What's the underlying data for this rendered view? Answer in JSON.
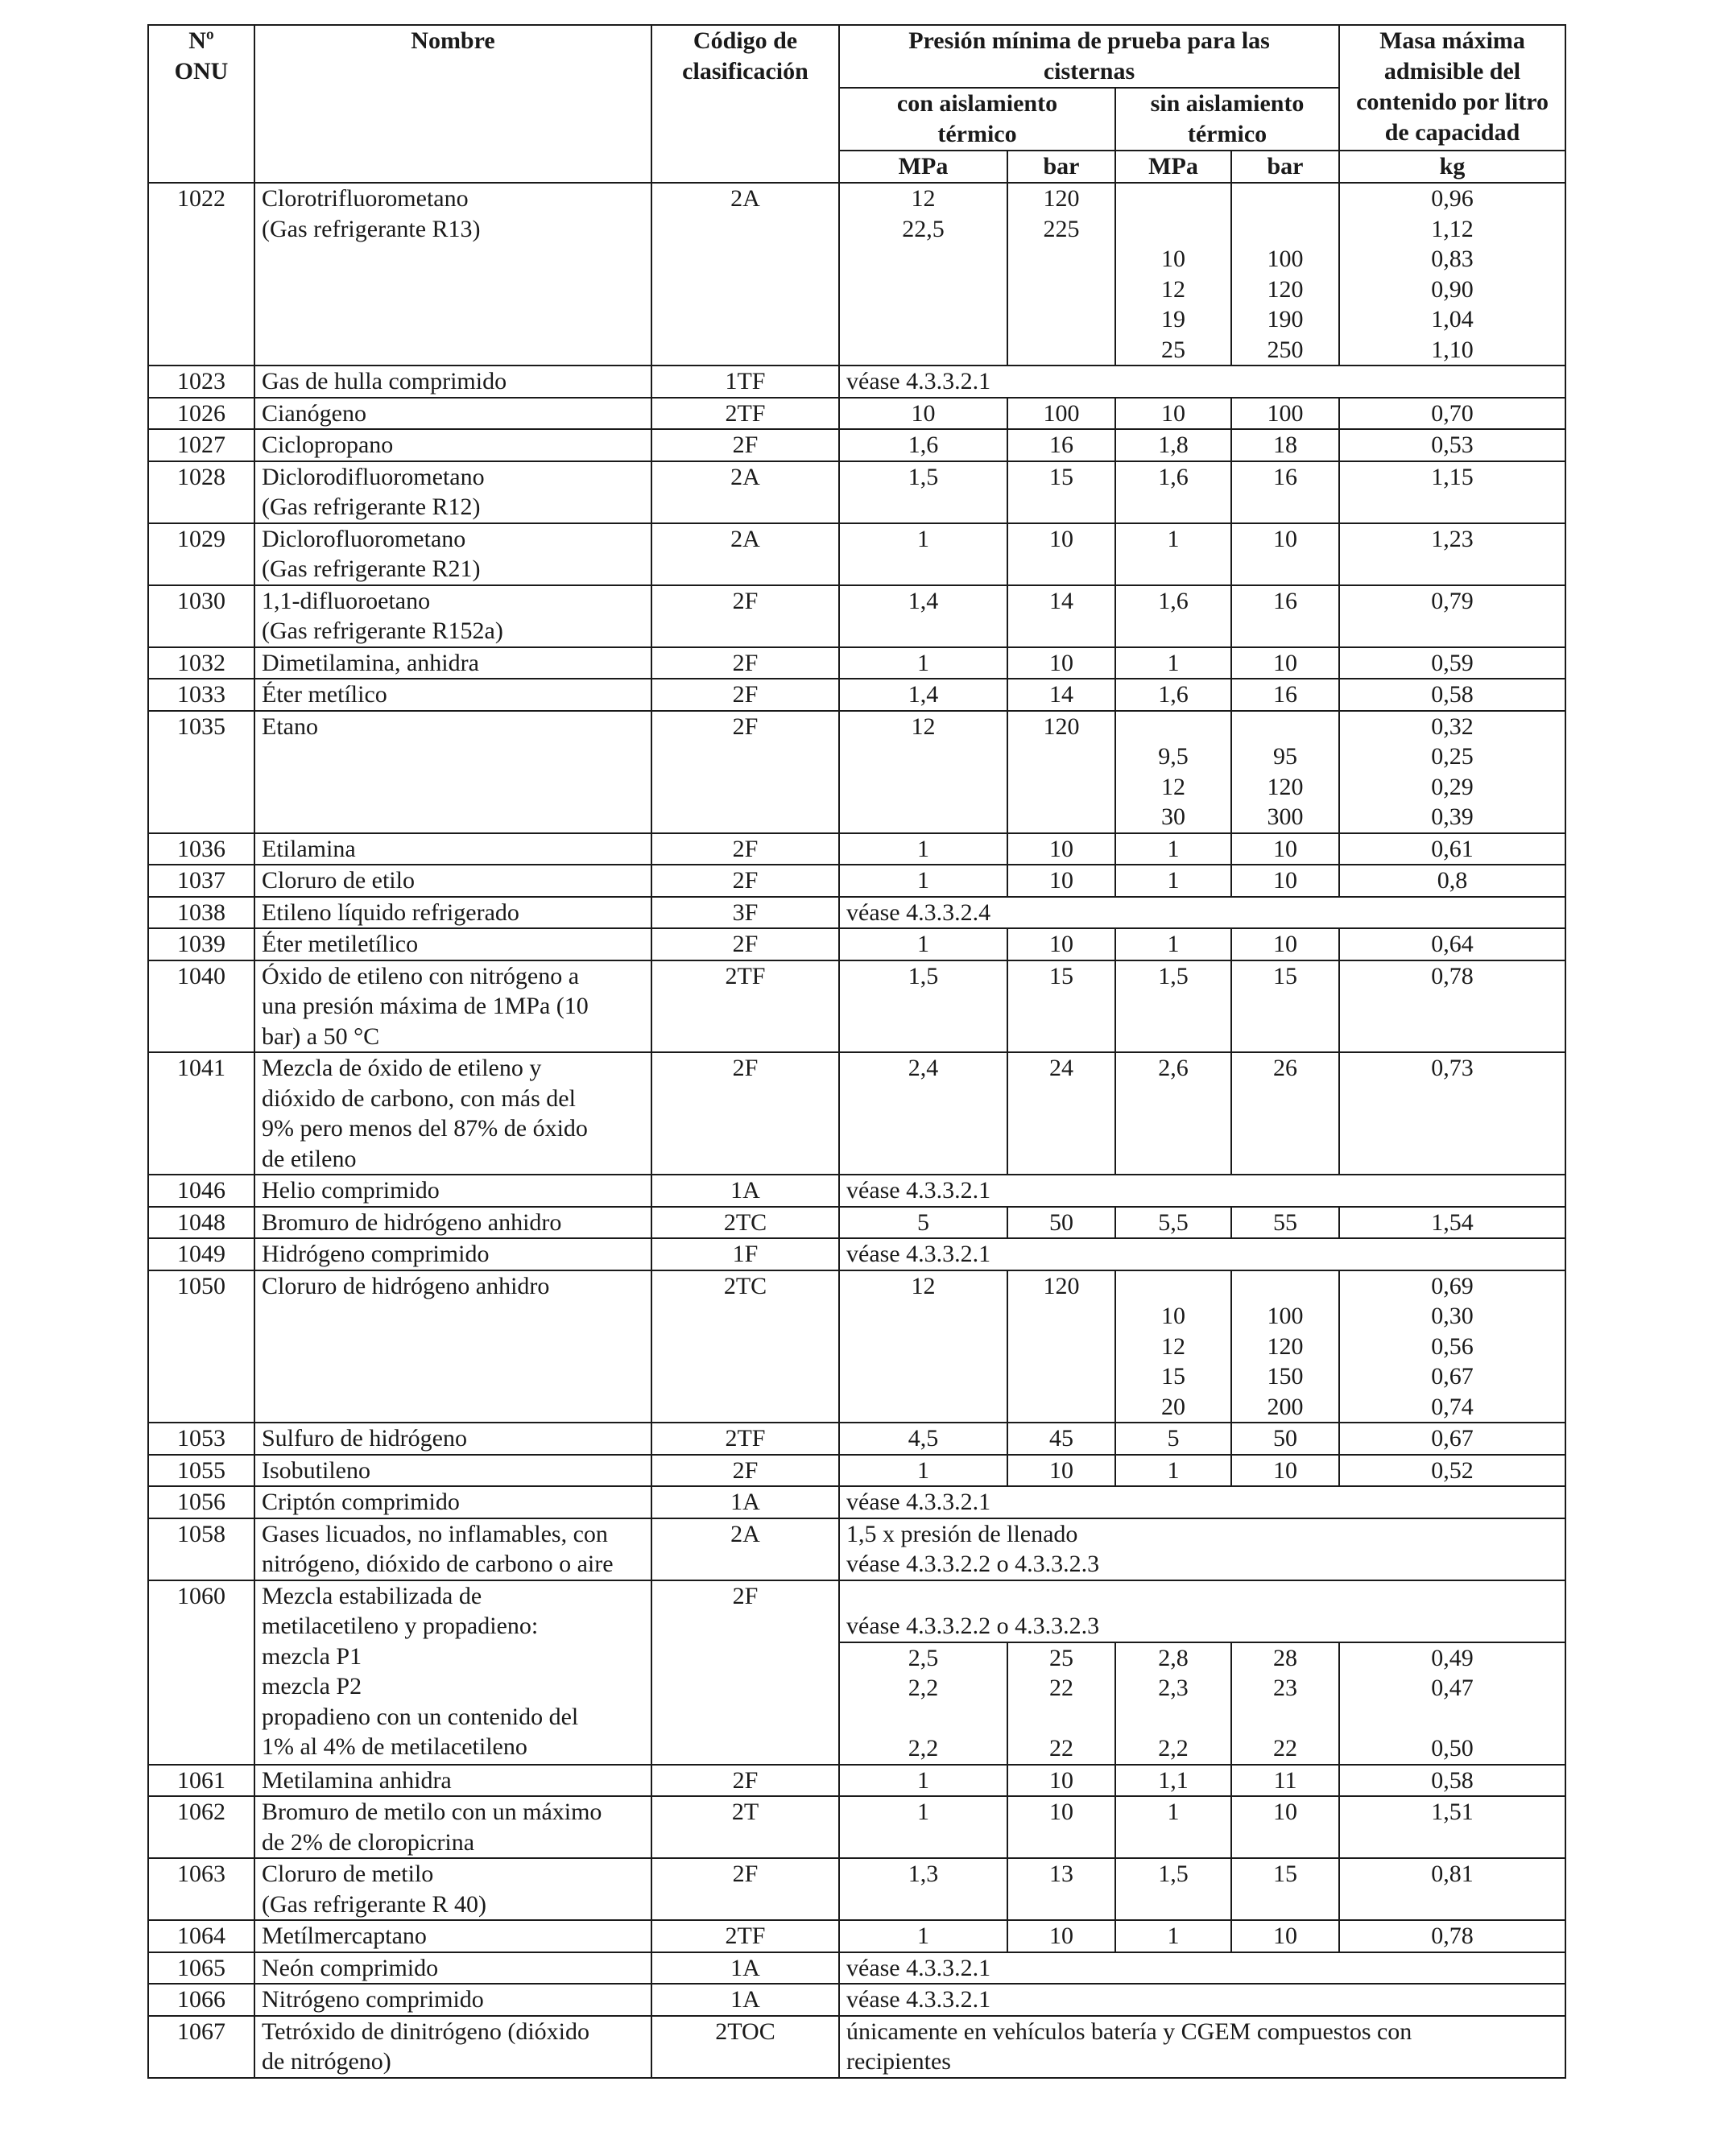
{
  "header": {
    "onu": [
      "Nº",
      "ONU"
    ],
    "nombre": "Nombre",
    "codigo": [
      "Código de",
      "clasificación"
    ],
    "presion": [
      "Presión mínima de prueba para las",
      "cisternas"
    ],
    "con_aisl": [
      "con aislamiento",
      "térmico"
    ],
    "sin_aisl": [
      "sin aislamiento",
      "térmico"
    ],
    "masa": [
      "Masa máxima",
      "admisible del",
      "contenido por litro",
      "de capacidad"
    ],
    "units": [
      "MPa",
      "bar",
      "MPa",
      "bar",
      "kg"
    ]
  },
  "rows": [
    {
      "onu": "1022",
      "nombre": [
        "Clorotrifluorometano",
        "(Gas refrigerante R13)"
      ],
      "codigo": "2A",
      "cmpa": [
        "12",
        "22,5",
        "",
        "",
        "",
        ""
      ],
      "cbar": [
        "120",
        "225",
        "",
        "",
        "",
        ""
      ],
      "smpa": [
        "",
        "",
        "10",
        "12",
        "19",
        "25"
      ],
      "sbar": [
        "",
        "",
        "100",
        "120",
        "190",
        "250"
      ],
      "kg": [
        "0,96",
        "1,12",
        "0,83",
        "0,90",
        "1,04",
        "1,10"
      ]
    },
    {
      "onu": "1023",
      "nombre": [
        "Gas de hulla comprimido"
      ],
      "codigo": "1TF",
      "span": [
        "véase 4.3.3.2.1"
      ]
    },
    {
      "onu": "1026",
      "nombre": [
        "Cianógeno"
      ],
      "codigo": "2TF",
      "cmpa": [
        "10"
      ],
      "cbar": [
        "100"
      ],
      "smpa": [
        "10"
      ],
      "sbar": [
        "100"
      ],
      "kg": [
        "0,70"
      ]
    },
    {
      "onu": "1027",
      "nombre": [
        "Ciclopropano"
      ],
      "codigo": "2F",
      "cmpa": [
        "1,6"
      ],
      "cbar": [
        "16"
      ],
      "smpa": [
        "1,8"
      ],
      "sbar": [
        "18"
      ],
      "kg": [
        "0,53"
      ]
    },
    {
      "onu": "1028",
      "nombre": [
        "Diclorodifluorometano",
        "(Gas refrigerante R12)"
      ],
      "codigo": "2A",
      "cmpa": [
        "1,5"
      ],
      "cbar": [
        "15"
      ],
      "smpa": [
        "1,6"
      ],
      "sbar": [
        "16"
      ],
      "kg": [
        "1,15"
      ]
    },
    {
      "onu": "1029",
      "nombre": [
        "Diclorofluorometano",
        "(Gas refrigerante R21)"
      ],
      "codigo": "2A",
      "cmpa": [
        "1"
      ],
      "cbar": [
        "10"
      ],
      "smpa": [
        "1"
      ],
      "sbar": [
        "10"
      ],
      "kg": [
        "1,23"
      ]
    },
    {
      "onu": "1030",
      "nombre": [
        "1,1-difluoroetano",
        "(Gas refrigerante R152a)"
      ],
      "codigo": "2F",
      "cmpa": [
        "1,4"
      ],
      "cbar": [
        "14"
      ],
      "smpa": [
        "1,6"
      ],
      "sbar": [
        "16"
      ],
      "kg": [
        "0,79"
      ]
    },
    {
      "onu": "1032",
      "nombre": [
        "Dimetilamina, anhidra"
      ],
      "codigo": "2F",
      "cmpa": [
        "1"
      ],
      "cbar": [
        "10"
      ],
      "smpa": [
        "1"
      ],
      "sbar": [
        "10"
      ],
      "kg": [
        "0,59"
      ]
    },
    {
      "onu": "1033",
      "nombre": [
        "Éter metílico"
      ],
      "codigo": "2F",
      "cmpa": [
        "1,4"
      ],
      "cbar": [
        "14"
      ],
      "smpa": [
        "1,6"
      ],
      "sbar": [
        "16"
      ],
      "kg": [
        "0,58"
      ]
    },
    {
      "onu": "1035",
      "nombre": [
        "Etano"
      ],
      "codigo": "2F",
      "cmpa": [
        "12",
        "",
        "",
        ""
      ],
      "cbar": [
        "120",
        "",
        "",
        ""
      ],
      "smpa": [
        "",
        "9,5",
        "12",
        "30"
      ],
      "sbar": [
        "",
        "95",
        "120",
        "300"
      ],
      "kg": [
        "0,32",
        "0,25",
        "0,29",
        "0,39"
      ]
    },
    {
      "onu": "1036",
      "nombre": [
        "Etilamina"
      ],
      "codigo": "2F",
      "cmpa": [
        "1"
      ],
      "cbar": [
        "10"
      ],
      "smpa": [
        "1"
      ],
      "sbar": [
        "10"
      ],
      "kg": [
        "0,61"
      ]
    },
    {
      "onu": "1037",
      "nombre": [
        "Cloruro de etilo"
      ],
      "codigo": "2F",
      "cmpa": [
        "1"
      ],
      "cbar": [
        "10"
      ],
      "smpa": [
        "1"
      ],
      "sbar": [
        "10"
      ],
      "kg": [
        "0,8"
      ]
    },
    {
      "onu": "1038",
      "nombre": [
        "Etileno líquido refrigerado"
      ],
      "codigo": "3F",
      "span": [
        "véase 4.3.3.2.4"
      ]
    },
    {
      "onu": "1039",
      "nombre": [
        "Éter metiletílico"
      ],
      "codigo": "2F",
      "cmpa": [
        "1"
      ],
      "cbar": [
        "10"
      ],
      "smpa": [
        "1"
      ],
      "sbar": [
        "10"
      ],
      "kg": [
        "0,64"
      ]
    },
    {
      "onu": "1040",
      "nombre": [
        "Óxido de etileno con nitrógeno a",
        "una presión máxima de 1MPa (10",
        "bar) a 50 °C"
      ],
      "codigo": "2TF",
      "cmpa": [
        "1,5"
      ],
      "cbar": [
        "15"
      ],
      "smpa": [
        "1,5"
      ],
      "sbar": [
        "15"
      ],
      "kg": [
        "0,78"
      ]
    },
    {
      "onu": "1041",
      "nombre": [
        "Mezcla de óxido de etileno y",
        "dióxido de carbono, con más del",
        "9% pero menos del 87% de óxido",
        "de etileno"
      ],
      "codigo": "2F",
      "cmpa": [
        "2,4"
      ],
      "cbar": [
        "24"
      ],
      "smpa": [
        "2,6"
      ],
      "sbar": [
        "26"
      ],
      "kg": [
        "0,73"
      ]
    },
    {
      "onu": "1046",
      "nombre": [
        "Helio comprimido"
      ],
      "codigo": "1A",
      "span": [
        "véase 4.3.3.2.1"
      ]
    },
    {
      "onu": "1048",
      "nombre": [
        "Bromuro de hidrógeno anhidro"
      ],
      "codigo": "2TC",
      "cmpa": [
        "5"
      ],
      "cbar": [
        "50"
      ],
      "smpa": [
        "5,5"
      ],
      "sbar": [
        "55"
      ],
      "kg": [
        "1,54"
      ]
    },
    {
      "onu": "1049",
      "nombre": [
        "Hidrógeno comprimido"
      ],
      "codigo": "1F",
      "span": [
        "véase 4.3.3.2.1"
      ]
    },
    {
      "onu": "1050",
      "nombre": [
        "Cloruro de hidrógeno anhidro"
      ],
      "codigo": "2TC",
      "cmpa": [
        "12",
        "",
        "",
        "",
        ""
      ],
      "cbar": [
        "120",
        "",
        "",
        "",
        ""
      ],
      "smpa": [
        "",
        "10",
        "12",
        "15",
        "20"
      ],
      "sbar": [
        "",
        "100",
        "120",
        "150",
        "200"
      ],
      "kg": [
        "0,69",
        "0,30",
        "0,56",
        "0,67",
        "0,74"
      ]
    },
    {
      "onu": "1053",
      "nombre": [
        "Sulfuro de hidrógeno"
      ],
      "codigo": "2TF",
      "cmpa": [
        "4,5"
      ],
      "cbar": [
        "45"
      ],
      "smpa": [
        "5"
      ],
      "sbar": [
        "50"
      ],
      "kg": [
        "0,67"
      ]
    },
    {
      "onu": "1055",
      "nombre": [
        "Isobutileno"
      ],
      "codigo": "2F",
      "cmpa": [
        "1"
      ],
      "cbar": [
        "10"
      ],
      "smpa": [
        "1"
      ],
      "sbar": [
        "10"
      ],
      "kg": [
        "0,52"
      ]
    },
    {
      "onu": "1056",
      "nombre": [
        "Criptón comprimido"
      ],
      "codigo": "1A",
      "span": [
        "véase 4.3.3.2.1"
      ]
    },
    {
      "onu": "1058",
      "nombre": [
        "Gases licuados, no inflamables, con",
        "nitrógeno, dióxido de carbono o aire"
      ],
      "codigo": "2A",
      "span": [
        "1,5 x presión de llenado",
        "véase 4.3.3.2.2 o 4.3.3.2.3"
      ]
    },
    {
      "onu": "1060",
      "nombre": [
        "Mezcla estabilizada de",
        "metilacetileno y propadieno:"
      ],
      "codigo": "2F",
      "span": [
        "",
        "véase 4.3.3.2.2 o 4.3.3.2.3"
      ]
    },
    {
      "nombre": [
        "mezcla P1",
        "mezcla P2",
        "propadieno con un contenido del",
        "1% al 4% de metilacetileno"
      ],
      "cmpa": [
        "2,5",
        "2,2",
        "",
        "2,2"
      ],
      "cbar": [
        "25",
        "22",
        "",
        "22"
      ],
      "smpa": [
        "2,8",
        "2,3",
        "",
        "2,2"
      ],
      "sbar": [
        "28",
        "23",
        "",
        "22"
      ],
      "kg": [
        "0,49",
        "0,47",
        "",
        "0,50"
      ]
    },
    {
      "onu": "1061",
      "nombre": [
        "Metilamina anhidra"
      ],
      "codigo": "2F",
      "cmpa": [
        "1"
      ],
      "cbar": [
        "10"
      ],
      "smpa": [
        "1,1"
      ],
      "sbar": [
        "11"
      ],
      "kg": [
        "0,58"
      ]
    },
    {
      "onu": "1062",
      "nombre": [
        "Bromuro de metilo con un máximo",
        "de 2% de cloropicrina"
      ],
      "codigo": "2T",
      "cmpa": [
        "1"
      ],
      "cbar": [
        "10"
      ],
      "smpa": [
        "1"
      ],
      "sbar": [
        "10"
      ],
      "kg": [
        "1,51"
      ]
    },
    {
      "onu": "1063",
      "nombre": [
        "Cloruro de metilo",
        "(Gas refrigerante R 40)"
      ],
      "codigo": "2F",
      "cmpa": [
        "1,3"
      ],
      "cbar": [
        "13"
      ],
      "smpa": [
        "1,5"
      ],
      "sbar": [
        "15"
      ],
      "kg": [
        "0,81"
      ]
    },
    {
      "onu": "1064",
      "nombre": [
        "Metílmercaptano"
      ],
      "codigo": "2TF",
      "cmpa": [
        "1"
      ],
      "cbar": [
        "10"
      ],
      "smpa": [
        "1"
      ],
      "sbar": [
        "10"
      ],
      "kg": [
        "0,78"
      ]
    },
    {
      "onu": "1065",
      "nombre": [
        "Neón comprimido"
      ],
      "codigo": "1A",
      "span": [
        "véase 4.3.3.2.1"
      ]
    },
    {
      "onu": "1066",
      "nombre": [
        "Nitrógeno comprimido"
      ],
      "codigo": "1A",
      "span": [
        "véase 4.3.3.2.1"
      ]
    },
    {
      "onu": "1067",
      "nombre": [
        "Tetróxido de dinitrógeno (dióxido",
        "de nitrógeno)"
      ],
      "codigo": "2TOC",
      "span": [
        "únicamente en vehículos batería y CGEM compuestos con",
        "recipientes"
      ]
    }
  ]
}
